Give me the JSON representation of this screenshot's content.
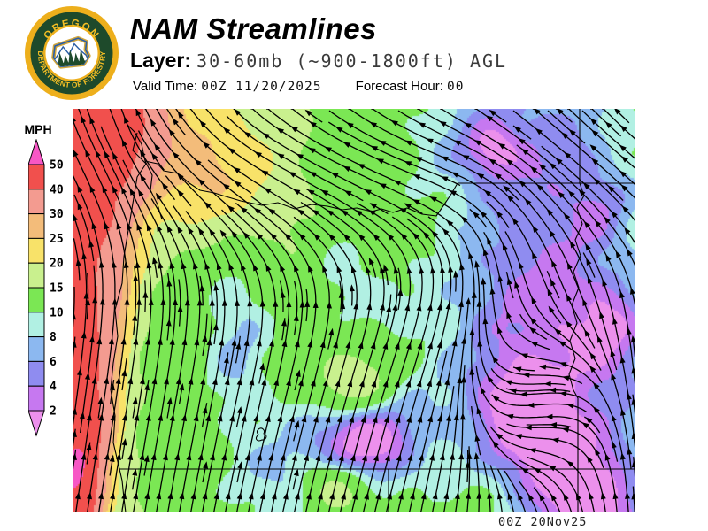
{
  "header": {
    "title": "NAM Streamlines",
    "layer_label": "Layer:",
    "layer_value": "30-60mb (~900-1800ft) AGL",
    "valid_time_label": "Valid Time:",
    "valid_time_value": "00Z 11/20/2025",
    "forecast_hour_label": "Forecast Hour:",
    "forecast_hour_value": "00"
  },
  "logo": {
    "top_text": "OREGON",
    "arc_text": "DEPARTMENT OF FORESTRY",
    "gold": "#EDAF1C",
    "green": "#1E4A2B",
    "blue": "#2B5EA7",
    "text_gold": "#F3BE25"
  },
  "legend": {
    "unit_label": "MPH",
    "tick_labels": [
      "50",
      "40",
      "30",
      "25",
      "20",
      "15",
      "10",
      "8",
      "6",
      "4",
      "2"
    ],
    "segment_colors": [
      "#F1504D",
      "#F39B90",
      "#F3BC7A",
      "#F8E269",
      "#C9F08E",
      "#7BE754",
      "#B1F0E3",
      "#8CB8F0",
      "#8F8CF0",
      "#C678F0"
    ],
    "over_color": "#F757C5",
    "under_color": "#EC90EC",
    "thresholds_ascending": [
      2,
      4,
      6,
      8,
      10,
      15,
      20,
      25,
      30,
      40,
      50
    ]
  },
  "map": {
    "annotation": "00Z 20Nov25",
    "stream_color": "#000000",
    "boundary_color": "#000000"
  }
}
